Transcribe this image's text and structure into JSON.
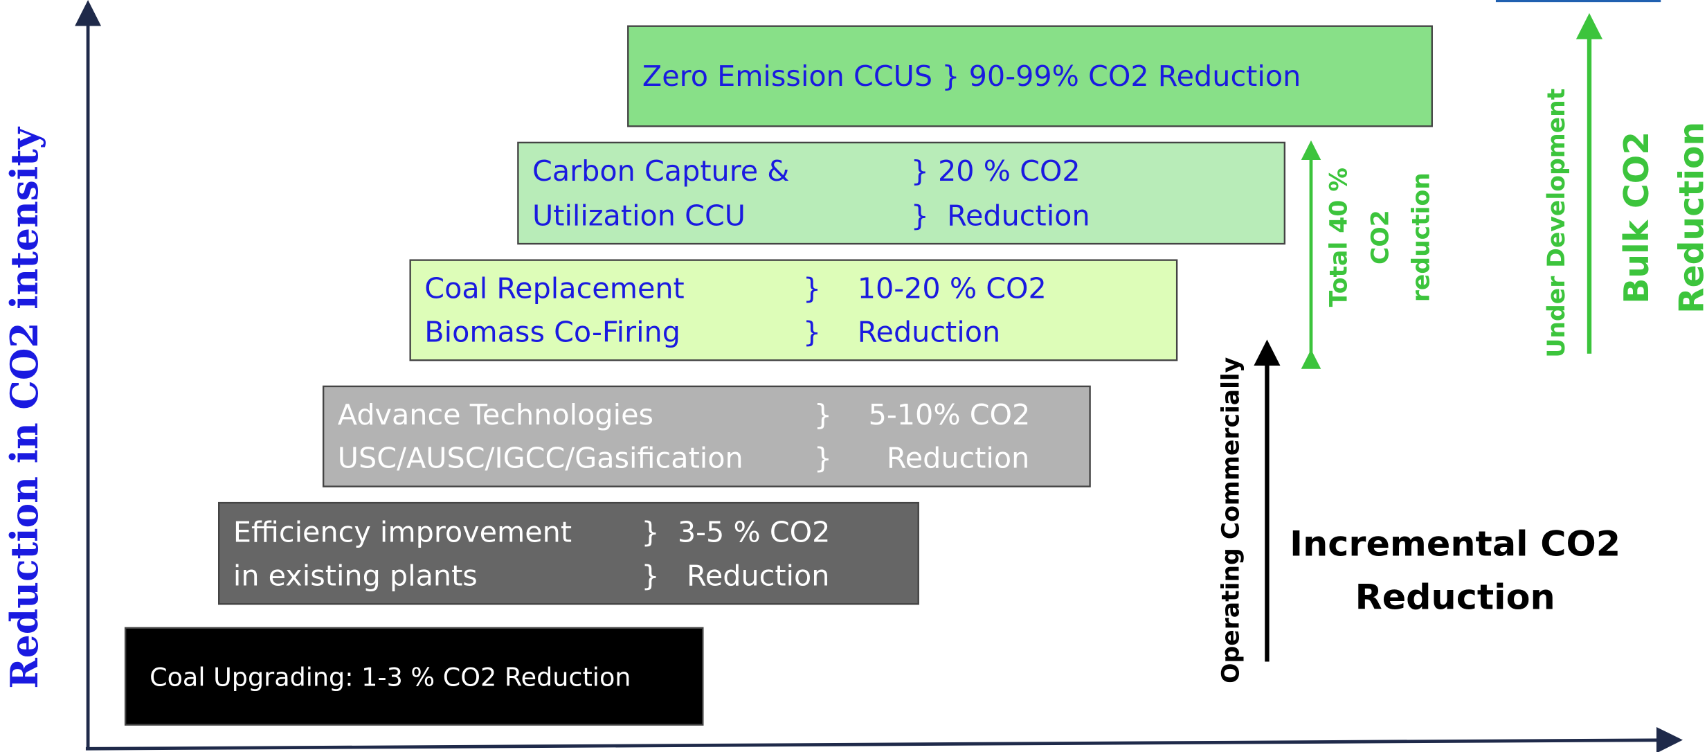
{
  "y_axis_label": "Reduction in CO2 intensity",
  "boxes": [
    {
      "left": [
        "Zero Emission CCUS } 90-99% CO2 Reduction"
      ],
      "right": []
    },
    {
      "left": [
        "Carbon Capture &",
        "Utilization CCU"
      ],
      "right": [
        "} 20 % CO2",
        "}  Reduction"
      ]
    },
    {
      "left": [
        "Coal Replacement",
        "Biomass Co-Firing"
      ],
      "right": [
        "}    10-20 % CO2",
        "}    Reduction"
      ]
    },
    {
      "left": [
        "Advance Technologies",
        "USC/AUSC/IGCC/Gasification"
      ],
      "right": [
        "}    5-10% CO2",
        "}      Reduction"
      ]
    },
    {
      "left": [
        "Efficiency improvement",
        "in existing plants"
      ],
      "right": [
        "}  3-5 % CO2",
        "}   Reduction"
      ]
    },
    {
      "left": [
        "Coal Upgrading: 1-3 % CO2 Reduction"
      ],
      "right": []
    }
  ],
  "operating_label": "Operating Commercially",
  "incremental_label": [
    "Incremental CO2",
    "Reduction"
  ],
  "total_label": [
    "Total 40 %",
    "CO2",
    "reduction"
  ],
  "development_label": "Under Development",
  "bulk_label": [
    "Bulk CO2",
    "Reduction"
  ]
}
